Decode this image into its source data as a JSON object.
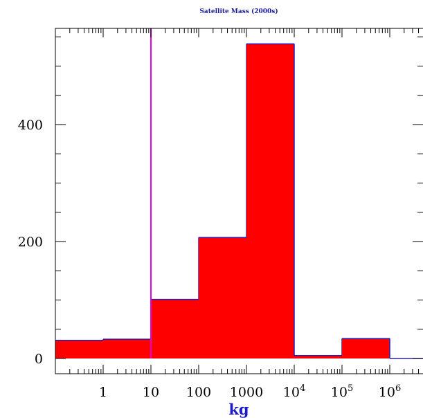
{
  "chart_data": {
    "type": "bar",
    "title": "Satellite Mass (2000s)",
    "xlabel": "kg",
    "ylabel": "",
    "x_scale": "log",
    "xlim": [
      0.1,
      10000000
    ],
    "ylim": [
      0,
      560
    ],
    "yticks": [
      {
        "value": 0,
        "label": "0"
      },
      {
        "value": 200,
        "label": "200"
      },
      {
        "value": 400,
        "label": "400"
      }
    ],
    "xticks": [
      {
        "value": 1,
        "label": "1",
        "sup": ""
      },
      {
        "value": 10,
        "label": "10",
        "sup": ""
      },
      {
        "value": 100,
        "label": "100",
        "sup": ""
      },
      {
        "value": 1000,
        "label": "1000",
        "sup": ""
      },
      {
        "value": 10000,
        "label": "10",
        "sup": "4"
      },
      {
        "value": 100000,
        "label": "10",
        "sup": "5"
      },
      {
        "value": 1000000,
        "label": "10",
        "sup": "6"
      }
    ],
    "bins": [
      {
        "from": 0.1,
        "to": 1,
        "value": 31
      },
      {
        "from": 1,
        "to": 10,
        "value": 33
      },
      {
        "from": 10,
        "to": 100,
        "value": 101
      },
      {
        "from": 100,
        "to": 1000,
        "value": 207
      },
      {
        "from": 1000,
        "to": 10000,
        "value": 538
      },
      {
        "from": 10000,
        "to": 100000,
        "value": 5
      },
      {
        "from": 100000,
        "to": 1000000,
        "value": 34
      },
      {
        "from": 1000000,
        "to": 10000000,
        "value": 0
      }
    ],
    "reference_line": {
      "x": 10
    },
    "grid": false,
    "colors": {
      "fill": "#ff0000",
      "outline": "#2020c0",
      "reference": "#e000e0",
      "axis": "#000000",
      "xlabel": "#1a1ac8",
      "title": "#1a1aa0"
    }
  }
}
